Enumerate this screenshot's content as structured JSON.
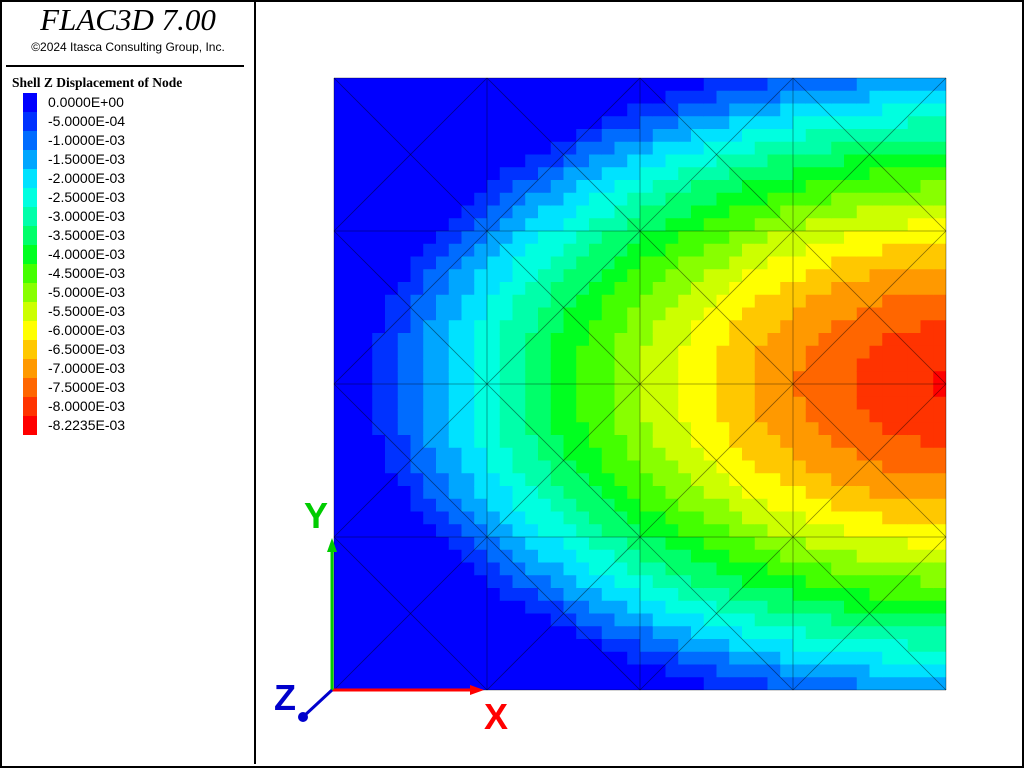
{
  "app": {
    "title": "FLAC3D 7.00",
    "copyright": "©2024 Itasca Consulting Group, Inc."
  },
  "legend": {
    "title": "Shell Z Displacement of Node",
    "entries": [
      {
        "label": "0.0000E+00",
        "color": "#0000ff"
      },
      {
        "label": "-5.0000E-04",
        "color": "#0032ff"
      },
      {
        "label": "-1.0000E-03",
        "color": "#006cff"
      },
      {
        "label": "-1.5000E-03",
        "color": "#00a6ff"
      },
      {
        "label": "-2.0000E-03",
        "color": "#00e2ff"
      },
      {
        "label": "-2.5000E-03",
        "color": "#00ffe0"
      },
      {
        "label": "-3.0000E-03",
        "color": "#00ffaa"
      },
      {
        "label": "-3.5000E-03",
        "color": "#00ff6a"
      },
      {
        "label": "-4.0000E-03",
        "color": "#00ff20"
      },
      {
        "label": "-4.5000E-03",
        "color": "#44ff00"
      },
      {
        "label": "-5.0000E-03",
        "color": "#88ff00"
      },
      {
        "label": "-5.5000E-03",
        "color": "#ccff00"
      },
      {
        "label": "-6.0000E-03",
        "color": "#ffff00"
      },
      {
        "label": "-6.5000E-03",
        "color": "#ffc800"
      },
      {
        "label": "-7.0000E-03",
        "color": "#ff9900"
      },
      {
        "label": "-7.5000E-03",
        "color": "#ff6600"
      },
      {
        "label": "-8.0000E-03",
        "color": "#ff3300"
      },
      {
        "label": "-8.2235E-03",
        "color": "#ff0000"
      }
    ]
  },
  "axes": {
    "x_label": "X",
    "y_label": "Y",
    "z_label": "Z",
    "x_color": "#ff0000",
    "y_color": "#00cc00",
    "z_color": "#0000cc"
  }
}
